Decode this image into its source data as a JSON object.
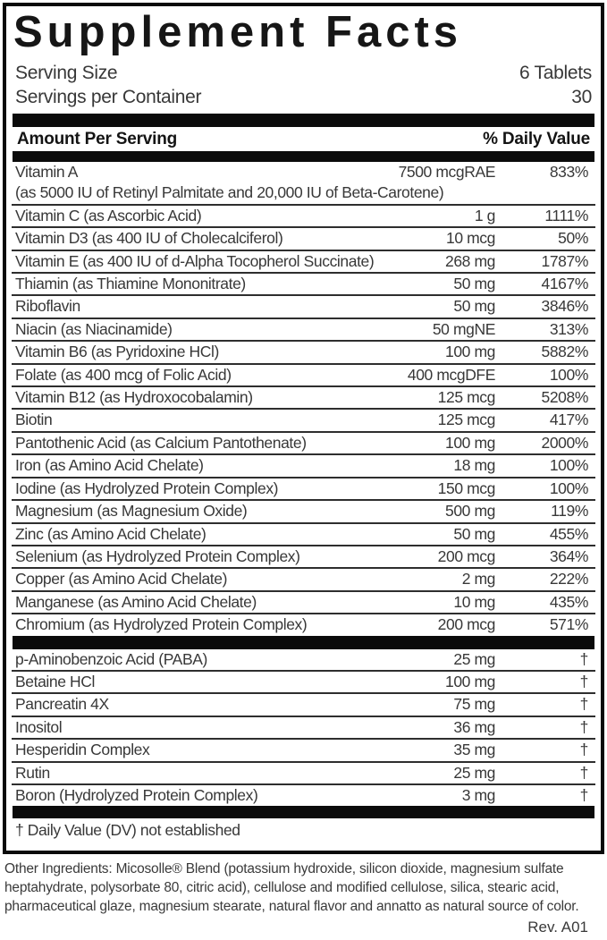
{
  "label": {
    "title": "Supplement Facts",
    "serving": {
      "size_label": "Serving Size",
      "size_value": "6 Tablets",
      "per_container_label": "Servings per Container",
      "per_container_value": "30"
    },
    "columns": {
      "amount_header": "Amount Per Serving",
      "dv_header": "% Daily Value"
    },
    "main_rows": [
      {
        "name": "Vitamin A",
        "sub": "(as 5000 IU of Retinyl Palmitate and 20,000 IU of Beta-Carotene)",
        "amount": "7500 mcgRAE",
        "dv": "833%"
      },
      {
        "name": "Vitamin C (as Ascorbic Acid)",
        "amount": "1 g",
        "dv": "1111%"
      },
      {
        "name": "Vitamin D3 (as 400 IU of Cholecalciferol)",
        "amount": "10 mcg",
        "dv": "50%"
      },
      {
        "name": "Vitamin E (as 400 IU of d-Alpha Tocopherol Succinate)",
        "amount": "268 mg",
        "dv": "1787%"
      },
      {
        "name": "Thiamin (as Thiamine Mononitrate)",
        "amount": "50 mg",
        "dv": "4167%"
      },
      {
        "name": "Riboflavin",
        "amount": "50 mg",
        "dv": "3846%"
      },
      {
        "name": "Niacin (as Niacinamide)",
        "amount": "50 mgNE",
        "dv": "313%"
      },
      {
        "name": "Vitamin B6 (as Pyridoxine HCl)",
        "amount": "100 mg",
        "dv": "5882%"
      },
      {
        "name": "Folate (as 400 mcg of Folic Acid)",
        "amount": "400 mcgDFE",
        "dv": "100%"
      },
      {
        "name": "Vitamin B12 (as Hydroxocobalamin)",
        "amount": "125 mcg",
        "dv": "5208%"
      },
      {
        "name": "Biotin",
        "amount": "125 mcg",
        "dv": "417%"
      },
      {
        "name": "Pantothenic Acid (as Calcium Pantothenate)",
        "amount": "100 mg",
        "dv": "2000%"
      },
      {
        "name": "Iron (as Amino Acid Chelate)",
        "amount": "18 mg",
        "dv": "100%"
      },
      {
        "name": "Iodine (as Hydrolyzed Protein Complex)",
        "amount": "150 mcg",
        "dv": "100%"
      },
      {
        "name": "Magnesium (as Magnesium Oxide)",
        "amount": "500 mg",
        "dv": "119%"
      },
      {
        "name": "Zinc (as Amino Acid Chelate)",
        "amount": "50 mg",
        "dv": "455%"
      },
      {
        "name": "Selenium (as Hydrolyzed Protein Complex)",
        "amount": "200 mcg",
        "dv": "364%"
      },
      {
        "name": "Copper (as Amino Acid Chelate)",
        "amount": "2 mg",
        "dv": "222%"
      },
      {
        "name": "Manganese (as Amino Acid Chelate)",
        "amount": "10 mg",
        "dv": "435%"
      },
      {
        "name": "Chromium (as Hydrolyzed Protein Complex)",
        "amount": "200 mcg",
        "dv": "571%"
      }
    ],
    "secondary_rows": [
      {
        "name": "p-Aminobenzoic Acid (PABA)",
        "amount": "25 mg",
        "dv": "†"
      },
      {
        "name": "Betaine HCl",
        "amount": "100 mg",
        "dv": "†"
      },
      {
        "name": "Pancreatin 4X",
        "amount": "75 mg",
        "dv": "†"
      },
      {
        "name": "Inositol",
        "amount": "36 mg",
        "dv": "†"
      },
      {
        "name": "Hesperidin Complex",
        "amount": "35 mg",
        "dv": "†"
      },
      {
        "name": "Rutin",
        "amount": "25 mg",
        "dv": "†"
      },
      {
        "name": "Boron (Hydrolyzed Protein Complex)",
        "amount": "3 mg",
        "dv": "†"
      }
    ],
    "footnote": "† Daily Value (DV) not established",
    "other_ingredients": "Other Ingredients: Micosolle® Blend (potassium hydroxide, silicon dioxide, magnesium sulfate heptahydrate, polysorbate 80, citric acid), cellulose and modified cellulose, silica, stearic acid, pharmaceutical glaze, magnesium stearate, natural flavor and annatto as natural source of color.",
    "revision": "Rev. A01"
  }
}
